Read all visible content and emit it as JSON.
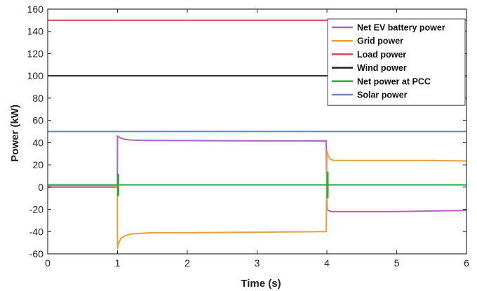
{
  "chart_data": {
    "type": "line",
    "xlabel": "Time (s)",
    "ylabel": "Power (kW)",
    "xlim": [
      0,
      6
    ],
    "ylim": [
      -60,
      160
    ],
    "xticks": [
      0,
      1,
      2,
      3,
      4,
      5,
      6
    ],
    "yticks": [
      -60,
      -40,
      -20,
      0,
      20,
      40,
      60,
      80,
      100,
      120,
      140,
      160
    ],
    "grid": false,
    "legend_position": "top-right",
    "series": [
      {
        "name": "Net EV battery power",
        "color": "#b063c6",
        "x": [
          0,
          0.998,
          1.0,
          1.02,
          1.05,
          1.1,
          1.2,
          1.4,
          2,
          3,
          3.99,
          4.0,
          4.02,
          4.06,
          4.15,
          4.3,
          5,
          5.5,
          6
        ],
        "y": [
          0,
          0,
          46,
          45,
          44,
          43,
          42.3,
          42,
          41.8,
          41.6,
          41.5,
          -20,
          -21,
          -22,
          -22,
          -22,
          -22,
          -21.5,
          -21
        ]
      },
      {
        "name": "Grid power",
        "color": "#e8a13a",
        "x": [
          0,
          0.998,
          1.0,
          1.02,
          1.05,
          1.1,
          1.2,
          1.5,
          2,
          3,
          3.99,
          4.0,
          4.02,
          4.05,
          4.1,
          4.2,
          5,
          5.5,
          6
        ],
        "y": [
          1.5,
          1.5,
          -55,
          -50,
          -46,
          -44,
          -42,
          -41,
          -41,
          -40.5,
          -40,
          33,
          28,
          25,
          24,
          24,
          24,
          24,
          23.5
        ]
      },
      {
        "name": "Load power",
        "color": "#dd4455",
        "x": [
          0,
          6
        ],
        "y": [
          150,
          150
        ]
      },
      {
        "name": "Wind power",
        "color": "#222222",
        "x": [
          0,
          6
        ],
        "y": [
          100,
          100
        ]
      },
      {
        "name": "Net power at PCC",
        "color": "#2fa84f",
        "x": [
          0,
          6
        ],
        "y": [
          2,
          2
        ]
      },
      {
        "name": "Solar power",
        "color": "#6f86c9",
        "x": [
          0,
          6
        ],
        "y": [
          50,
          50
        ]
      }
    ]
  }
}
